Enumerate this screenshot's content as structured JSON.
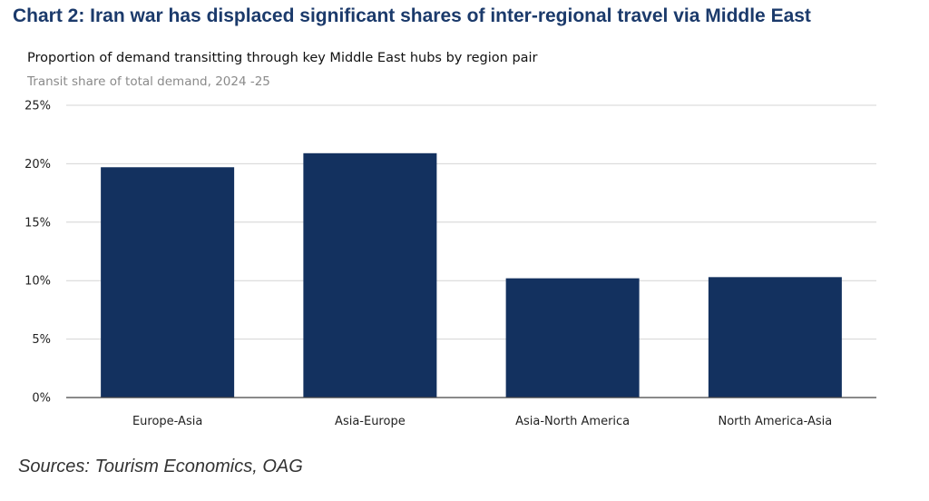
{
  "heading": "Chart 2: Iran war has displaced significant shares of inter-regional travel via Middle East",
  "source": "Sources: Tourism Economics, OAG",
  "colors": {
    "bar": "#13315f",
    "grid": "#d4d4d4",
    "axis": "#444444",
    "heading": "#1b3a6b"
  },
  "chart_data": {
    "type": "bar",
    "title": "Proportion of demand transitting through key Middle East hubs by region pair",
    "subtitle": "Transit share of total demand, 2024 -25",
    "xlabel": "",
    "ylabel": "",
    "ylim": [
      0,
      25
    ],
    "yticks": [
      "0%",
      "5%",
      "10%",
      "15%",
      "20%",
      "25%"
    ],
    "ytick_values": [
      0,
      5,
      10,
      15,
      20,
      25
    ],
    "categories": [
      "Europe-Asia",
      "Asia-Europe",
      "Asia-North America",
      "North America-Asia"
    ],
    "values": [
      19.7,
      20.9,
      10.2,
      10.3
    ],
    "unit": "%",
    "grid": true,
    "legend": "none"
  }
}
